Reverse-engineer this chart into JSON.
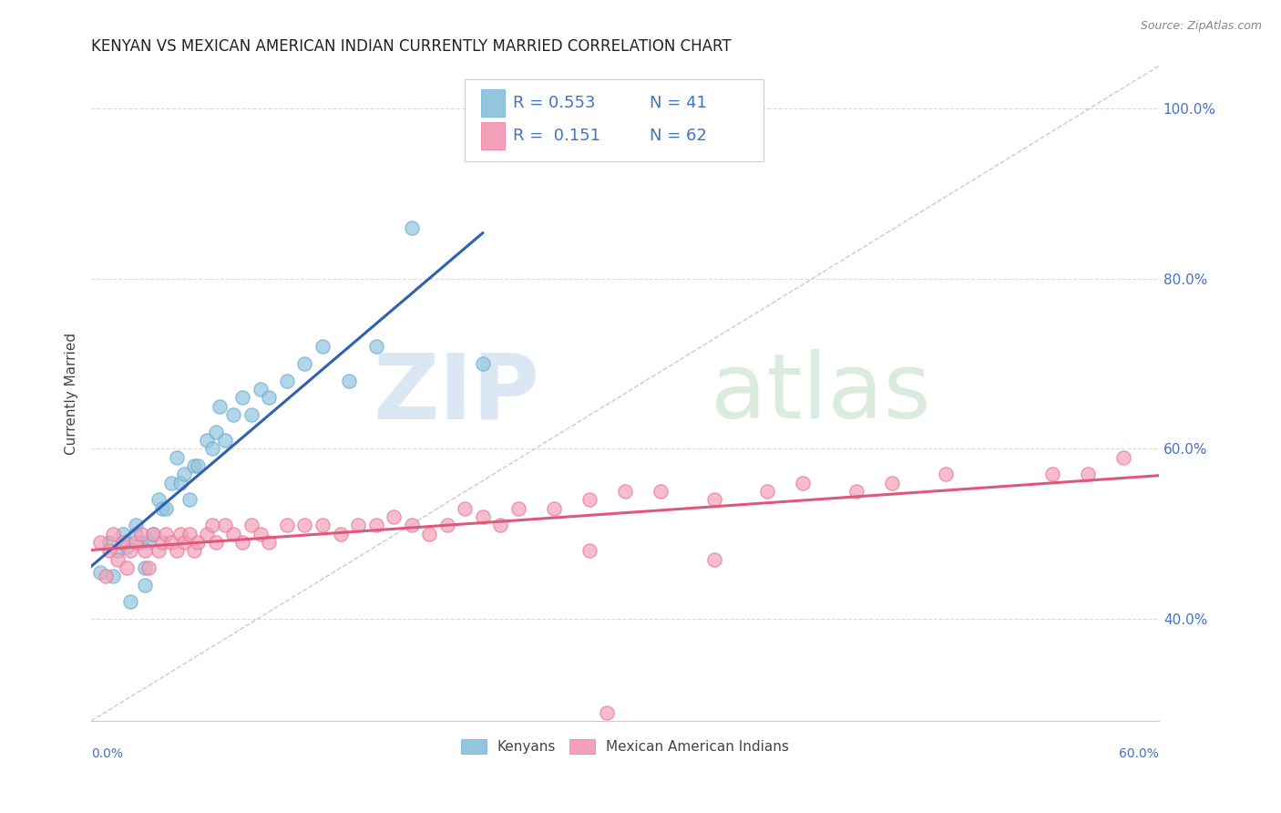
{
  "title": "KENYAN VS MEXICAN AMERICAN INDIAN CURRENTLY MARRIED CORRELATION CHART",
  "source": "Source: ZipAtlas.com",
  "ylabel": "Currently Married",
  "y_tick_values": [
    0.4,
    0.6,
    0.8,
    1.0
  ],
  "xlim": [
    0.0,
    0.6
  ],
  "ylim": [
    0.28,
    1.05
  ],
  "legend_r1": "R = 0.553",
  "legend_n1": "N = 41",
  "legend_r2": "R =  0.151",
  "legend_n2": "N = 62",
  "watermark_zip": "ZIP",
  "watermark_atlas": "atlas",
  "kenyan_scatter_x": [
    0.005,
    0.01,
    0.012,
    0.015,
    0.018,
    0.02,
    0.022,
    0.025,
    0.025,
    0.028,
    0.03,
    0.03,
    0.032,
    0.035,
    0.038,
    0.04,
    0.042,
    0.045,
    0.048,
    0.05,
    0.052,
    0.055,
    0.058,
    0.06,
    0.065,
    0.068,
    0.07,
    0.072,
    0.075,
    0.08,
    0.085,
    0.09,
    0.095,
    0.1,
    0.11,
    0.12,
    0.13,
    0.145,
    0.16,
    0.18,
    0.22
  ],
  "kenyan_scatter_y": [
    0.455,
    0.49,
    0.45,
    0.48,
    0.5,
    0.485,
    0.42,
    0.5,
    0.51,
    0.49,
    0.46,
    0.44,
    0.49,
    0.5,
    0.54,
    0.53,
    0.53,
    0.56,
    0.59,
    0.56,
    0.57,
    0.54,
    0.58,
    0.58,
    0.61,
    0.6,
    0.62,
    0.65,
    0.61,
    0.64,
    0.66,
    0.64,
    0.67,
    0.66,
    0.68,
    0.7,
    0.72,
    0.68,
    0.72,
    0.86,
    0.7
  ],
  "mexican_scatter_x": [
    0.005,
    0.008,
    0.01,
    0.012,
    0.015,
    0.018,
    0.02,
    0.022,
    0.025,
    0.028,
    0.03,
    0.032,
    0.035,
    0.038,
    0.04,
    0.042,
    0.045,
    0.048,
    0.05,
    0.052,
    0.055,
    0.058,
    0.06,
    0.065,
    0.068,
    0.07,
    0.075,
    0.08,
    0.085,
    0.09,
    0.095,
    0.1,
    0.11,
    0.12,
    0.13,
    0.14,
    0.15,
    0.16,
    0.17,
    0.18,
    0.19,
    0.2,
    0.21,
    0.22,
    0.23,
    0.24,
    0.26,
    0.28,
    0.3,
    0.32,
    0.35,
    0.38,
    0.4,
    0.43,
    0.45,
    0.48,
    0.28,
    0.35,
    0.54,
    0.56,
    0.58,
    0.29
  ],
  "mexican_scatter_y": [
    0.49,
    0.45,
    0.48,
    0.5,
    0.47,
    0.49,
    0.46,
    0.48,
    0.49,
    0.5,
    0.48,
    0.46,
    0.5,
    0.48,
    0.49,
    0.5,
    0.49,
    0.48,
    0.5,
    0.49,
    0.5,
    0.48,
    0.49,
    0.5,
    0.51,
    0.49,
    0.51,
    0.5,
    0.49,
    0.51,
    0.5,
    0.49,
    0.51,
    0.51,
    0.51,
    0.5,
    0.51,
    0.51,
    0.52,
    0.51,
    0.5,
    0.51,
    0.53,
    0.52,
    0.51,
    0.53,
    0.53,
    0.54,
    0.55,
    0.55,
    0.54,
    0.55,
    0.56,
    0.55,
    0.56,
    0.57,
    0.48,
    0.47,
    0.57,
    0.57,
    0.59,
    0.29
  ],
  "kenyan_color": "#92c5de",
  "kenyan_edge_color": "#6aaed6",
  "mexican_color": "#f4a0b8",
  "mexican_edge_color": "#e87898",
  "kenyan_line_color": "#3060b0",
  "mexican_line_color": "#e05878",
  "ref_line_color": "#b8c8d8",
  "background_color": "#ffffff",
  "plot_bg_color": "#ffffff",
  "grid_color": "#d8d8d8"
}
